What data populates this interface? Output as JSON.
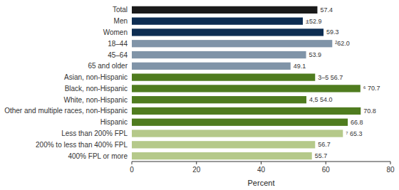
{
  "chart_data": {
    "type": "bar",
    "orientation": "horizontal",
    "categories": [
      "Total",
      "Men",
      "Women",
      "18–44",
      "45–64",
      "65 and older",
      "Asian, non-Hispanic",
      "Black, non-Hispanic",
      "White, non-Hispanic",
      "Other and multiple races, non-Hispanic",
      "Hispanic",
      "Less than 200% FPL",
      "200% to less than 400% FPL",
      "400% FPL or more"
    ],
    "values": [
      57.4,
      52.9,
      59.3,
      62.0,
      53.9,
      49.1,
      56.7,
      70.7,
      54.0,
      70.8,
      66.8,
      65.3,
      56.7,
      55.7
    ],
    "value_labels": [
      "57.4",
      "±52.9",
      "59.3",
      "²62.0",
      "53.9",
      "49.1",
      "3–5 56.7",
      "⁶ 70.7",
      "4,5 54.0",
      "70.8",
      "66.8",
      "⁷ 65.3",
      "56.7",
      "55.7"
    ],
    "colors": [
      "#1a1a1a",
      "#0d2d52",
      "#0d2d52",
      "#8094a8",
      "#8094a8",
      "#8094a8",
      "#4f7c1f",
      "#4f7c1f",
      "#4f7c1f",
      "#4f7c1f",
      "#4f7c1f",
      "#b5c98a",
      "#b5c98a",
      "#b5c98a"
    ],
    "xlabel": "Percent",
    "xlim": [
      0,
      80
    ],
    "xticks": [
      0,
      20,
      40,
      60,
      80
    ],
    "data_labels": true,
    "grid": false
  }
}
